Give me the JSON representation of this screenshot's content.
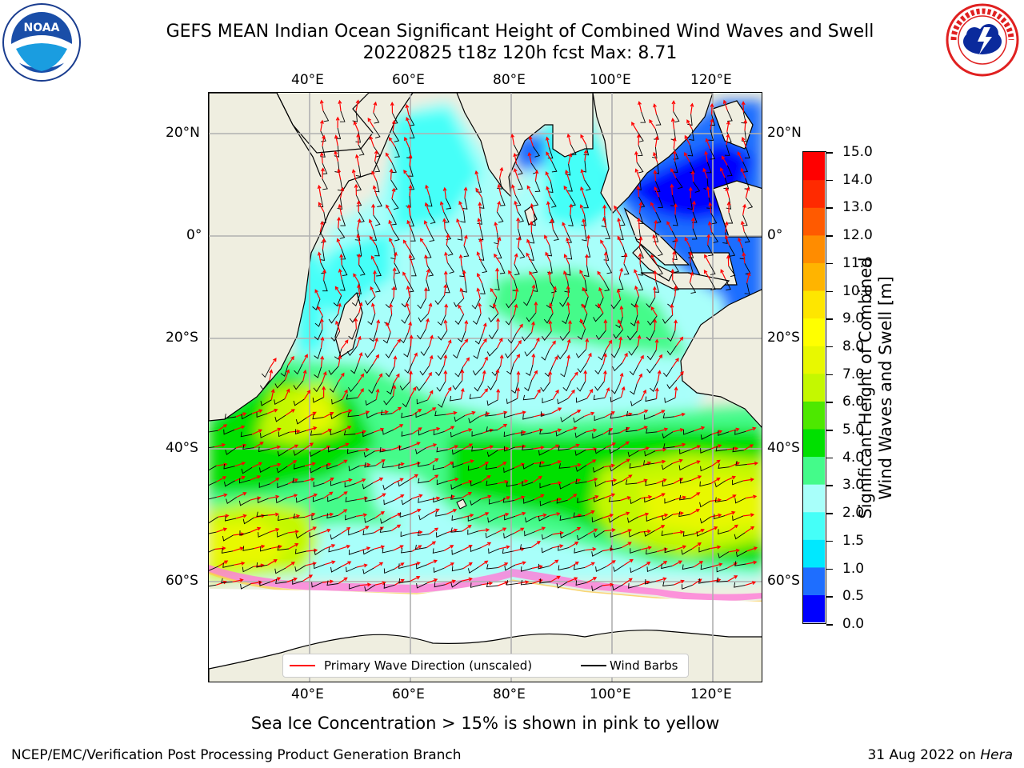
{
  "title_line1": "GEFS MEAN Indian Ocean Significant Height of Combined Wind Waves and Swell",
  "title_line2": "20220825 t18z 120h fcst   Max: 8.71",
  "logos": {
    "left": {
      "icon": "noaa-logo",
      "text": "NOAA",
      "ring_text": "NATIONAL OCEANIC AND ATMOSPHERIC ADMINISTRATION · U.S. DEPARTMENT OF COMMERCE"
    },
    "right": {
      "icon": "national-weather-service-logo",
      "ring_text": "NATIONAL WEATHER SERVICE"
    }
  },
  "map": {
    "lon_ticks": [
      "40°E",
      "60°E",
      "80°E",
      "100°E",
      "120°E"
    ],
    "lat_ticks": [
      "20°N",
      "0°",
      "20°S",
      "40°S",
      "60°S"
    ],
    "lon_range_deg": [
      20,
      130
    ],
    "lat_range_deg": [
      -72,
      28
    ],
    "land_color": "#efeee0",
    "wave_arrow_color": "#ff0000",
    "wind_barb_color": "#000000"
  },
  "colorbar": {
    "label_line1": "Significant Height of Combined",
    "label_line2": "Wind Waves and Swell [m]",
    "ticks": [
      "0.0",
      "0.5",
      "1.0",
      "1.5",
      "2.0",
      "3.0",
      "4.0",
      "5.0",
      "6.0",
      "7.0",
      "8.0",
      "9.0",
      "10.0",
      "11.0",
      "12.0",
      "13.0",
      "14.0",
      "15.0"
    ],
    "colors": [
      "#0000ff",
      "#1e6eff",
      "#00e8ff",
      "#45fff8",
      "#a8fffa",
      "#44fb8a",
      "#00e000",
      "#4de800",
      "#c4f800",
      "#e8f800",
      "#ffff00",
      "#fee600",
      "#ffb400",
      "#ff8c00",
      "#ff5a00",
      "#ff2a00",
      "#ff0000"
    ]
  },
  "legend": {
    "wave_label": "Primary Wave Direction (unscaled)",
    "wind_label": "Wind Barbs"
  },
  "note": "Sea Ice Concentration > 15% is shown in pink to yellow",
  "footer_left": "NCEP/EMC/Verification Post Processing Product Generation Branch",
  "footer_right_prefix": "31 Aug 2022 on ",
  "footer_right_host": "Hera"
}
